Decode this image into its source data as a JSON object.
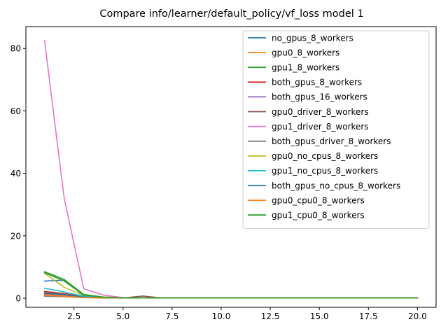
{
  "chart_data": {
    "type": "line",
    "title": "Compare info/learner/default_policy/vf_loss model 1",
    "xlabel": "",
    "ylabel": "",
    "xlim": [
      0.05,
      20.95
    ],
    "ylim": [
      -2.9,
      87.0
    ],
    "xticks": [
      2.5,
      5.0,
      7.5,
      10.0,
      12.5,
      15.0,
      17.5,
      20.0
    ],
    "xtick_labels": [
      "2.5",
      "5.0",
      "7.5",
      "10.0",
      "12.5",
      "15.0",
      "17.5",
      "20.0"
    ],
    "yticks": [
      0,
      20,
      40,
      60,
      80
    ],
    "ytick_labels": [
      "0",
      "20",
      "40",
      "60",
      "80"
    ],
    "grid": false,
    "legend_position": "top-right",
    "x": [
      1,
      2,
      3,
      4,
      5,
      6,
      7,
      8,
      9,
      10,
      11,
      12,
      13,
      14,
      15,
      16,
      17,
      18,
      19,
      20
    ],
    "series": [
      {
        "name": "no_gpus_8_workers",
        "color": "#1f77b4",
        "values": [
          5.5,
          5.8,
          0.8,
          0.3,
          0.2,
          0.1,
          0.1,
          0.1,
          0.1,
          0.1,
          0.1,
          0.1,
          0.1,
          0.1,
          0.1,
          0.1,
          0.1,
          0.1,
          0.1,
          0.1
        ]
      },
      {
        "name": "gpu0_8_workers",
        "color": "#ff7f0e",
        "values": [
          1.2,
          1.0,
          0.4,
          0.2,
          0.1,
          0.1,
          0.1,
          0.1,
          0.1,
          0.1,
          0.1,
          0.1,
          0.1,
          0.1,
          0.1,
          0.1,
          0.1,
          0.1,
          0.1,
          0.1
        ]
      },
      {
        "name": "gpu1_8_workers",
        "color": "#2ca02c",
        "values": [
          8.5,
          6.0,
          1.2,
          0.4,
          0.2,
          0.1,
          0.1,
          0.1,
          0.1,
          0.1,
          0.1,
          0.1,
          0.1,
          0.1,
          0.1,
          0.1,
          0.1,
          0.1,
          0.1,
          0.1
        ]
      },
      {
        "name": "both_gpus_8_workers",
        "color": "#d62728",
        "values": [
          2.2,
          1.5,
          0.5,
          0.2,
          0.1,
          0.1,
          0.1,
          0.1,
          0.1,
          0.1,
          0.1,
          0.1,
          0.1,
          0.1,
          0.1,
          0.1,
          0.1,
          0.1,
          0.1,
          0.1
        ]
      },
      {
        "name": "both_gpus_16_workers",
        "color": "#9467bd",
        "values": [
          1.0,
          0.8,
          0.3,
          0.1,
          0.1,
          0.1,
          0.1,
          0.1,
          0.1,
          0.1,
          0.1,
          0.1,
          0.1,
          0.1,
          0.1,
          0.1,
          0.1,
          0.1,
          0.1,
          0.1
        ]
      },
      {
        "name": "gpu0_driver_8_workers",
        "color": "#8c564b",
        "values": [
          1.8,
          1.3,
          0.4,
          0.2,
          0.1,
          0.7,
          0.1,
          0.1,
          0.1,
          0.1,
          0.1,
          0.1,
          0.1,
          0.1,
          0.1,
          0.1,
          0.1,
          0.1,
          0.1,
          0.1
        ]
      },
      {
        "name": "gpu1_driver_8_workers",
        "color": "#e377c2",
        "values": [
          82.5,
          32.0,
          3.0,
          1.0,
          0.2,
          0.1,
          0.1,
          0.1,
          0.1,
          0.1,
          0.1,
          0.1,
          0.1,
          0.1,
          0.1,
          0.1,
          0.1,
          0.1,
          0.1,
          0.1
        ]
      },
      {
        "name": "both_gpus_driver_8_workers",
        "color": "#7f7f7f",
        "values": [
          0.6,
          0.5,
          0.2,
          0.1,
          0.1,
          0.1,
          0.1,
          0.1,
          0.1,
          0.1,
          0.1,
          0.1,
          0.1,
          0.1,
          0.1,
          0.1,
          0.1,
          0.1,
          0.1,
          0.1
        ]
      },
      {
        "name": "gpu0_no_cpus_8_workers",
        "color": "#bcbd22",
        "values": [
          8.0,
          3.5,
          0.8,
          0.3,
          0.1,
          0.1,
          0.1,
          0.1,
          0.1,
          0.1,
          0.1,
          0.1,
          0.1,
          0.1,
          0.1,
          0.1,
          0.1,
          0.1,
          0.1,
          0.1
        ]
      },
      {
        "name": "gpu1_no_cpus_8_workers",
        "color": "#17becf",
        "values": [
          3.2,
          2.0,
          0.6,
          0.2,
          0.1,
          0.1,
          0.1,
          0.1,
          0.1,
          0.1,
          0.1,
          0.1,
          0.1,
          0.1,
          0.1,
          0.1,
          0.1,
          0.1,
          0.1,
          0.1
        ]
      },
      {
        "name": "both_gpus_no_cpus_8_workers",
        "color": "#1f77b4",
        "values": [
          1.5,
          1.2,
          0.3,
          0.1,
          0.1,
          0.1,
          0.1,
          0.1,
          0.1,
          0.1,
          0.1,
          0.1,
          0.1,
          0.1,
          0.1,
          0.1,
          0.1,
          0.1,
          0.1,
          0.1
        ]
      },
      {
        "name": "gpu0_cpu0_8_workers",
        "color": "#ff7f0e",
        "values": [
          0.9,
          0.7,
          0.2,
          0.1,
          0.1,
          0.1,
          0.1,
          0.1,
          0.1,
          0.1,
          0.1,
          0.1,
          0.1,
          0.1,
          0.1,
          0.1,
          0.1,
          0.1,
          0.1,
          0.1
        ]
      },
      {
        "name": "gpu1_cpu0_8_workers",
        "color": "#2ca02c",
        "values": [
          8.2,
          5.5,
          1.0,
          0.3,
          0.1,
          0.1,
          0.1,
          0.1,
          0.1,
          0.1,
          0.1,
          0.1,
          0.1,
          0.1,
          0.1,
          0.1,
          0.1,
          0.1,
          0.1,
          0.1
        ]
      }
    ]
  }
}
